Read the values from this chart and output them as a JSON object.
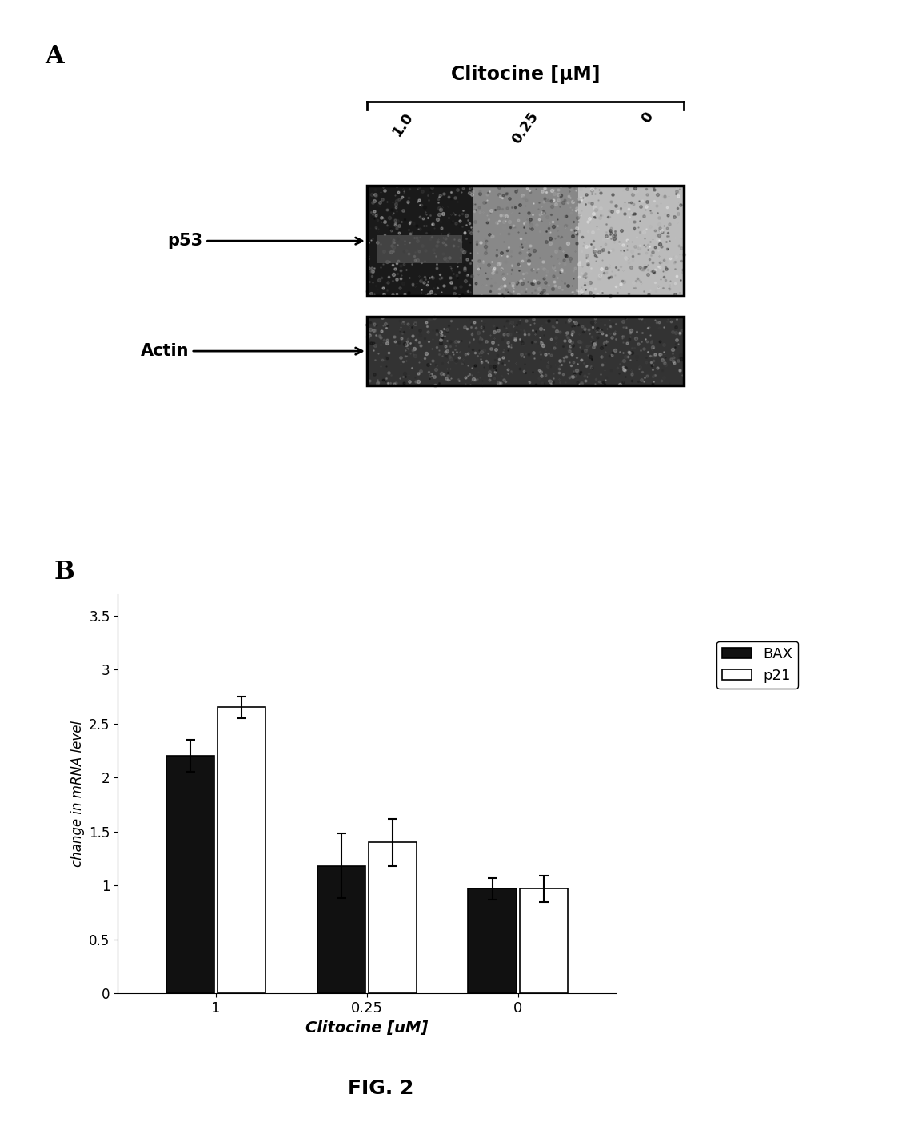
{
  "panel_A_label": "A",
  "panel_B_label": "B",
  "fig_label": "FIG. 2",
  "blot_title": "Clitocine [μM]",
  "blot_concentrations": [
    "1.0",
    "0.25",
    "0"
  ],
  "bar_categories": [
    "1",
    "0.25",
    "0"
  ],
  "xlabel": "Clitocine [uM]",
  "ylabel": "change in mRNA level",
  "BAX_values": [
    2.2,
    1.18,
    0.97
  ],
  "p21_values": [
    2.65,
    1.4,
    0.97
  ],
  "BAX_errors": [
    0.15,
    0.3,
    0.1
  ],
  "p21_errors": [
    0.1,
    0.22,
    0.12
  ],
  "BAX_color": "#111111",
  "p21_color": "#ffffff",
  "bar_edge_color": "#000000",
  "yticks": [
    0,
    0.5,
    1.0,
    1.5,
    2.0,
    2.5,
    3.0,
    3.5
  ],
  "ylim": [
    0,
    3.7
  ],
  "background_color": "#ffffff",
  "legend_BAX": "BAX",
  "legend_p21": "p21"
}
